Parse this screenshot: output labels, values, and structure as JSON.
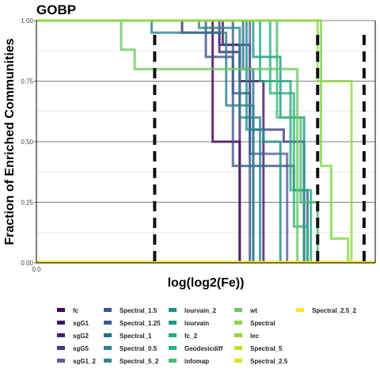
{
  "chart_data": {
    "type": "line",
    "title": "GOBP",
    "xlabel": "log(log2(Fe))",
    "ylabel": "Fraction of Enriched Communities",
    "ylim": [
      0,
      1
    ],
    "y_ticks": [
      "0.00",
      "0.25",
      "0.50",
      "0.75",
      "1.00"
    ],
    "x_ticks": [
      "0.0"
    ],
    "grid": true,
    "legend_position": "bottom",
    "vlines_style": "black dashed",
    "vlines_x": [
      0.349,
      0.83,
      0.967
    ],
    "series": [
      {
        "name": "fc",
        "color": "#440154",
        "x": [
          0,
          0.52,
          0.52,
          0.6,
          0.6
        ],
        "y": [
          1,
          1,
          0.5,
          0.5,
          0
        ]
      },
      {
        "name": "sgG1",
        "color": "#471164",
        "x": [
          0,
          0.55,
          0.55,
          0.6,
          0.6,
          0.67,
          0.67
        ],
        "y": [
          1,
          1,
          0.9,
          0.9,
          0.75,
          0.75,
          0
        ]
      },
      {
        "name": "sgG2",
        "color": "#48206E",
        "x": [
          0,
          0.43,
          0.43,
          0.54,
          0.54,
          0.6,
          0.6
        ],
        "y": [
          1,
          1,
          0.95,
          0.95,
          0.87,
          0.87,
          0
        ]
      },
      {
        "name": "sgG5",
        "color": "#453781",
        "x": [
          0,
          0.54,
          0.54,
          0.63,
          0.63,
          0.73,
          0.73,
          0.79,
          0.79
        ],
        "y": [
          1,
          1,
          0.9,
          0.9,
          0.55,
          0.55,
          0.5,
          0.5,
          0
        ]
      },
      {
        "name": "sgG1_2",
        "color": "#5B5C9B",
        "x": [
          0,
          0.63,
          0.63,
          0.74,
          0.74
        ],
        "y": [
          1,
          1,
          0.45,
          0.45,
          0
        ]
      },
      {
        "name": "Spectral_1.5",
        "color": "#39568C",
        "x": [
          0,
          0.5,
          0.5,
          0.58,
          0.58,
          0.63,
          0.63
        ],
        "y": [
          1,
          1,
          0.85,
          0.85,
          0.7,
          0.7,
          0
        ]
      },
      {
        "name": "Spectral_1.25",
        "color": "#3B5B8F",
        "x": [
          0,
          0.58,
          0.58,
          0.76,
          0.76,
          0.8,
          0.8
        ],
        "y": [
          1,
          1,
          0.4,
          0.4,
          0.3,
          0.3,
          0
        ]
      },
      {
        "name": "Spectral_1",
        "color": "#2D6F8E",
        "x": [
          0,
          0.61,
          0.61,
          0.64,
          0.64
        ],
        "y": [
          1,
          1,
          0.8,
          0.8,
          0
        ]
      },
      {
        "name": "Spectral_0.5",
        "color": "#2E7F8E",
        "x": [
          0,
          0.34,
          0.34,
          0.56,
          0.56,
          0.64,
          0.64
        ],
        "y": [
          1,
          1,
          0.95,
          0.95,
          0.65,
          0.65,
          0
        ]
      },
      {
        "name": "Spectral_5_2",
        "color": "#2A8A8B",
        "x": [
          0,
          0.48,
          0.48,
          0.6,
          0.6,
          0.66,
          0.66
        ],
        "y": [
          1,
          1,
          0.97,
          0.97,
          0.6,
          0.6,
          0
        ]
      },
      {
        "name": "lourvain_2",
        "color": "#218F8C",
        "x": [
          0,
          0.62,
          0.62,
          0.67,
          0.67,
          0.72,
          0.72
        ],
        "y": [
          1,
          1,
          0.55,
          0.55,
          0.5,
          0.5,
          0
        ]
      },
      {
        "name": "lourvain",
        "color": "#1F9A8A",
        "x": [
          0,
          0.64,
          0.64,
          0.72,
          0.72,
          0.79,
          0.79
        ],
        "y": [
          1,
          1,
          0.85,
          0.85,
          0.6,
          0.6,
          0
        ]
      },
      {
        "name": "fc_2",
        "color": "#27AD81",
        "x": [
          0,
          0.66,
          0.66,
          0.75,
          0.75,
          0.81,
          0.81
        ],
        "y": [
          1,
          1,
          0.75,
          0.75,
          0.3,
          0.3,
          0
        ]
      },
      {
        "name": "Geodesicdiff",
        "color": "#2DAF7F",
        "x": [
          0,
          0.69,
          0.69,
          0.76,
          0.76,
          0.8,
          0.8
        ],
        "y": [
          1,
          1,
          0.7,
          0.7,
          0.15,
          0.15,
          0
        ]
      },
      {
        "name": "infomap",
        "color": "#44BF70",
        "x": [
          0,
          0.71,
          0.71,
          0.78,
          0.78,
          0.83,
          0.83
        ],
        "y": [
          1,
          1,
          0.6,
          0.6,
          0.25,
          0.25,
          0
        ]
      },
      {
        "name": "wt",
        "color": "#6CCB5F",
        "x": [
          0,
          0.25,
          0.25,
          0.29,
          0.29,
          0.77,
          0.77
        ],
        "y": [
          1,
          1,
          0.88,
          0.88,
          0.8,
          0.8,
          0
        ]
      },
      {
        "name": "Spectral",
        "color": "#86D549",
        "x": [
          0,
          0.84,
          0.84,
          0.87,
          0.87,
          0.92,
          0.92
        ],
        "y": [
          1,
          1,
          0.4,
          0.4,
          0.1,
          0.1,
          0
        ]
      },
      {
        "name": "lec",
        "color": "#95D840",
        "x": [
          0,
          0.83,
          0.83,
          0.93,
          0.93
        ],
        "y": [
          1,
          1,
          0.75,
          0.75,
          0
        ]
      },
      {
        "name": "Spectral_5",
        "color": "#C0DF25",
        "x": [
          0,
          1
        ],
        "y": [
          0.003,
          0.003
        ]
      },
      {
        "name": "Spectral_2.5",
        "color": "#DCE319",
        "x": [
          0,
          1
        ],
        "y": [
          0.003,
          0.003
        ]
      },
      {
        "name": "Spectral_2.5_2",
        "color": "#FDE725",
        "x": [
          0,
          1
        ],
        "y": [
          0.002,
          0.002
        ]
      }
    ]
  }
}
